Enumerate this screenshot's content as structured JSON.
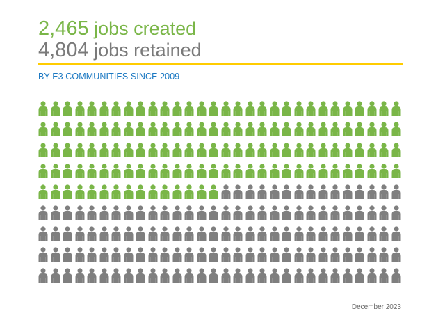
{
  "headline": {
    "created_number": "2,465",
    "created_label": "jobs created",
    "retained_number": "4,804",
    "retained_label": "jobs retained"
  },
  "subtitle": "BY E3 COMMUNITIES SINCE 2009",
  "footer_date": "December 2023",
  "pictogram": {
    "icon": "person-icon",
    "icons_per_row": 30,
    "rows": 9,
    "created_icons": 135,
    "retained_icons": 135
  },
  "colors": {
    "created": "#7ab648",
    "retained": "#7f7f7f",
    "rule": "#ffcc00",
    "subtitle": "#1a78c2"
  }
}
